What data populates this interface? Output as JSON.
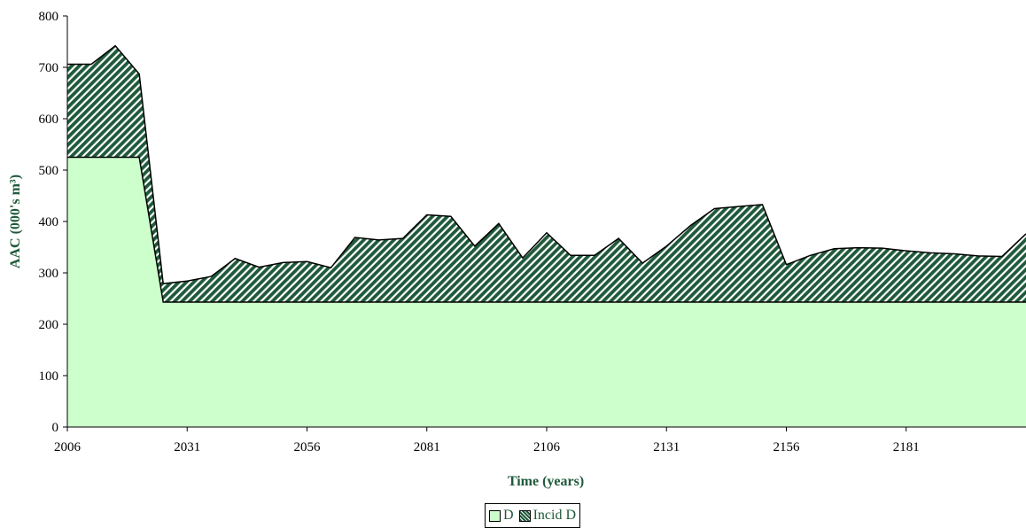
{
  "chart_data": {
    "type": "area",
    "stacked": true,
    "title": "",
    "xlabel": "Time (years)",
    "ylabel": "AAC (000's m³)",
    "xlim": [
      2006,
      2206
    ],
    "ylim": [
      0,
      800
    ],
    "x_ticks": [
      2006,
      2031,
      2056,
      2081,
      2106,
      2131,
      2156,
      2181
    ],
    "y_ticks": [
      0,
      100,
      200,
      300,
      400,
      500,
      600,
      700,
      800
    ],
    "x": [
      2006,
      2011,
      2016,
      2021,
      2026,
      2031,
      2036,
      2041,
      2046,
      2051,
      2056,
      2061,
      2066,
      2071,
      2076,
      2081,
      2086,
      2091,
      2096,
      2101,
      2106,
      2111,
      2116,
      2121,
      2126,
      2131,
      2136,
      2141,
      2146,
      2151,
      2156,
      2161,
      2166,
      2171,
      2176,
      2181,
      2186,
      2191,
      2196,
      2201,
      2206
    ],
    "series": [
      {
        "name": "D",
        "color": "#ccffcc",
        "values": [
          525,
          525,
          525,
          525,
          243,
          243,
          243,
          243,
          243,
          243,
          243,
          243,
          243,
          243,
          243,
          243,
          243,
          243,
          243,
          243,
          243,
          243,
          243,
          243,
          243,
          243,
          243,
          243,
          243,
          243,
          243,
          243,
          243,
          243,
          243,
          243,
          243,
          243,
          243,
          243,
          243
        ]
      },
      {
        "name": "Incid D",
        "color": "#1f5a3a",
        "pattern": "diagonal-hatch",
        "values": [
          181,
          181,
          217,
          162,
          36,
          41,
          50,
          85,
          68,
          77,
          79,
          67,
          126,
          121,
          124,
          170,
          167,
          109,
          153,
          86,
          135,
          91,
          91,
          124,
          76,
          109,
          149,
          182,
          186,
          190,
          73,
          91,
          104,
          106,
          105,
          100,
          96,
          94,
          90,
          89,
          133
        ]
      }
    ],
    "grid": false,
    "legend_position": "bottom"
  },
  "legend": {
    "items": [
      "D",
      "Incid D"
    ]
  }
}
